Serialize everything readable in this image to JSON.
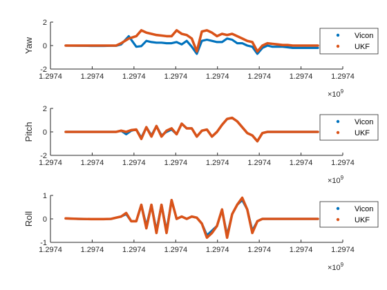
{
  "chart_data": [
    {
      "type": "line",
      "ylabel": "Yaw",
      "ylim": [
        -2,
        2
      ],
      "yticks": [
        -2,
        0,
        2
      ],
      "x_tick_labels": [
        "1.2974",
        "1.2974",
        "1.2974",
        "1.2974",
        "1.2974",
        "1.2974",
        "1.2974",
        "1.2974"
      ],
      "x_exponent": "×10",
      "x_exponent_power": "9",
      "legend": {
        "location": "right",
        "entries": [
          "Vicon",
          "UKF"
        ]
      },
      "grid": false,
      "x": [
        0.0,
        0.05,
        0.1,
        0.15,
        0.18,
        0.2,
        0.22,
        0.25,
        0.28,
        0.3,
        0.32,
        0.34,
        0.36,
        0.38,
        0.4,
        0.42,
        0.44,
        0.46,
        0.48,
        0.5,
        0.52,
        0.54,
        0.56,
        0.58,
        0.6,
        0.62,
        0.64,
        0.66,
        0.68,
        0.7,
        0.72,
        0.74,
        0.76,
        0.78,
        0.8,
        0.82,
        0.84,
        0.86,
        0.88,
        0.9,
        0.92,
        0.94,
        0.96,
        0.98,
        1.0
      ],
      "series": [
        {
          "name": "Vicon",
          "color": "#0072BD",
          "values": [
            0.0,
            -0.02,
            -0.03,
            -0.03,
            -0.02,
            -0.02,
            0.1,
            0.8,
            -0.1,
            -0.05,
            0.4,
            0.3,
            0.25,
            0.25,
            0.2,
            0.2,
            0.3,
            0.1,
            0.4,
            -0.1,
            -0.7,
            0.4,
            0.5,
            0.4,
            0.3,
            0.3,
            0.6,
            0.5,
            0.2,
            0.2,
            0.0,
            -0.1,
            -0.7,
            -0.2,
            0.0,
            -0.1,
            -0.1,
            -0.1,
            -0.15,
            -0.2,
            -0.2,
            -0.2,
            -0.2,
            -0.2,
            -0.2
          ]
        },
        {
          "name": "UKF",
          "color": "#D95319",
          "values": [
            0.0,
            0.0,
            0.0,
            0.0,
            0.0,
            0.0,
            0.2,
            0.6,
            0.8,
            1.3,
            1.1,
            1.0,
            0.9,
            0.85,
            0.8,
            0.8,
            1.3,
            1.0,
            0.9,
            0.6,
            -0.5,
            1.2,
            1.3,
            1.1,
            0.8,
            1.0,
            0.9,
            1.0,
            0.8,
            0.6,
            0.4,
            0.3,
            -0.5,
            0.0,
            0.2,
            0.15,
            0.1,
            0.05,
            0.05,
            0.0,
            0.0,
            0.0,
            0.0,
            0.0,
            0.0
          ]
        }
      ]
    },
    {
      "type": "line",
      "ylabel": "Pitch",
      "ylim": [
        -2,
        2
      ],
      "yticks": [
        -2,
        0,
        2
      ],
      "x_tick_labels": [
        "1.2974",
        "1.2974",
        "1.2974",
        "1.2974",
        "1.2974",
        "1.2974",
        "1.2974",
        "1.2974"
      ],
      "x_exponent": "×10",
      "x_exponent_power": "9",
      "legend": {
        "location": "right",
        "entries": [
          "Vicon",
          "UKF"
        ]
      },
      "grid": false,
      "x": [
        0.0,
        0.05,
        0.1,
        0.15,
        0.18,
        0.2,
        0.22,
        0.24,
        0.26,
        0.28,
        0.3,
        0.32,
        0.34,
        0.36,
        0.38,
        0.4,
        0.42,
        0.44,
        0.46,
        0.48,
        0.5,
        0.52,
        0.54,
        0.56,
        0.58,
        0.6,
        0.62,
        0.64,
        0.66,
        0.68,
        0.7,
        0.72,
        0.74,
        0.76,
        0.78,
        0.8,
        0.82,
        0.84,
        0.86,
        0.88,
        0.9,
        0.92,
        0.94,
        0.96,
        0.98,
        1.0
      ],
      "series": [
        {
          "name": "Vicon",
          "color": "#0072BD",
          "values": [
            0.0,
            0.0,
            0.0,
            0.0,
            0.0,
            0.0,
            0.1,
            -0.2,
            0.1,
            0.2,
            -0.5,
            0.4,
            -0.3,
            0.5,
            -0.3,
            0.0,
            0.2,
            -0.2,
            0.7,
            0.3,
            0.3,
            -0.4,
            0.1,
            0.2,
            -0.4,
            0.0,
            0.6,
            1.1,
            1.2,
            0.9,
            0.4,
            -0.1,
            -0.3,
            -0.8,
            -0.1,
            0.0,
            0.0,
            0.0,
            0.0,
            0.0,
            0.0,
            0.0,
            0.0,
            0.0,
            0.0,
            0.0
          ]
        },
        {
          "name": "UKF",
          "color": "#D95319",
          "values": [
            0.0,
            0.0,
            0.0,
            0.0,
            0.0,
            0.0,
            0.1,
            0.0,
            0.15,
            0.2,
            -0.6,
            0.4,
            -0.4,
            0.5,
            -0.4,
            0.1,
            0.3,
            -0.2,
            0.7,
            0.3,
            0.3,
            -0.4,
            0.1,
            0.2,
            -0.4,
            0.0,
            0.6,
            1.1,
            1.2,
            0.9,
            0.4,
            -0.1,
            -0.3,
            -0.8,
            -0.1,
            0.0,
            0.0,
            0.0,
            0.0,
            0.0,
            0.0,
            0.0,
            0.0,
            0.0,
            0.0,
            0.0
          ]
        }
      ]
    },
    {
      "type": "line",
      "ylabel": "Roll",
      "ylim": [
        -1,
        1
      ],
      "yticks": [
        -1,
        0,
        1
      ],
      "x_tick_labels": [
        "1.2974",
        "1.2974",
        "1.2974",
        "1.2974",
        "1.2974",
        "1.2974",
        "1.2974",
        "1.2974"
      ],
      "x_exponent": "×10",
      "x_exponent_power": "9",
      "legend": {
        "location": "right",
        "entries": [
          "Vicon",
          "UKF"
        ]
      },
      "grid": false,
      "x": [
        0.0,
        0.05,
        0.1,
        0.15,
        0.18,
        0.2,
        0.22,
        0.24,
        0.26,
        0.28,
        0.3,
        0.32,
        0.34,
        0.36,
        0.38,
        0.4,
        0.42,
        0.44,
        0.46,
        0.48,
        0.5,
        0.52,
        0.54,
        0.56,
        0.58,
        0.6,
        0.62,
        0.64,
        0.66,
        0.68,
        0.7,
        0.72,
        0.74,
        0.76,
        0.78,
        0.8,
        0.82,
        0.84,
        0.86,
        0.88,
        0.9,
        0.92,
        0.94,
        0.96,
        0.98,
        1.0
      ],
      "series": [
        {
          "name": "Vicon",
          "color": "#0072BD",
          "values": [
            0.02,
            0.0,
            -0.01,
            -0.01,
            0.0,
            0.05,
            0.1,
            0.2,
            -0.1,
            -0.1,
            0.6,
            -0.3,
            0.6,
            -0.5,
            0.6,
            -0.5,
            0.8,
            0.0,
            0.1,
            0.0,
            0.1,
            0.05,
            -0.2,
            -0.7,
            -0.5,
            -0.3,
            0.4,
            -0.7,
            0.2,
            0.6,
            0.8,
            0.4,
            -0.5,
            -0.1,
            0.0,
            0.0,
            0.0,
            0.0,
            0.0,
            0.0,
            0.0,
            0.0,
            0.0,
            0.0,
            0.0,
            0.0
          ]
        },
        {
          "name": "UKF",
          "color": "#D95319",
          "values": [
            0.02,
            0.0,
            -0.01,
            -0.01,
            0.0,
            0.05,
            0.1,
            0.25,
            -0.1,
            -0.1,
            0.6,
            -0.4,
            0.6,
            -0.6,
            0.6,
            -0.6,
            0.8,
            0.0,
            0.1,
            0.0,
            0.1,
            0.05,
            -0.2,
            -0.8,
            -0.6,
            -0.3,
            0.4,
            -0.8,
            0.2,
            0.6,
            0.9,
            0.4,
            -0.6,
            -0.1,
            0.0,
            0.0,
            0.0,
            0.0,
            0.0,
            0.0,
            0.0,
            0.0,
            0.0,
            0.0,
            0.0,
            0.0
          ]
        }
      ]
    }
  ]
}
